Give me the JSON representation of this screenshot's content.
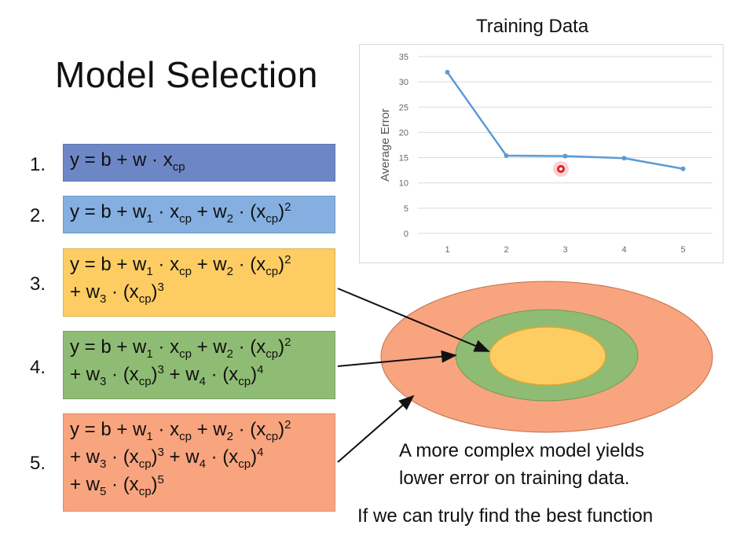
{
  "slide": {
    "title": "Model Selection",
    "models": [
      {
        "number": "1.",
        "color": "#6d86c6",
        "lines": [
          [
            [
              "t",
              "y = b + w · x"
            ],
            [
              "sub",
              "cp"
            ]
          ]
        ]
      },
      {
        "number": "2.",
        "color": "#84afe0",
        "lines": [
          [
            [
              "t",
              "y = b + w"
            ],
            [
              "sub",
              "1"
            ],
            [
              "t",
              " · x"
            ],
            [
              "sub",
              "cp"
            ],
            [
              "t",
              " + w"
            ],
            [
              "sub",
              "2"
            ],
            [
              "t",
              " · (x"
            ],
            [
              "sub",
              "cp"
            ],
            [
              "t",
              ")"
            ],
            [
              "sup",
              "2"
            ]
          ]
        ]
      },
      {
        "number": "3.",
        "color": "#fdcc63",
        "lines": [
          [
            [
              "t",
              "y = b + w"
            ],
            [
              "sub",
              "1"
            ],
            [
              "t",
              " · x"
            ],
            [
              "sub",
              "cp"
            ],
            [
              "t",
              " + w"
            ],
            [
              "sub",
              "2"
            ],
            [
              "t",
              " · (x"
            ],
            [
              "sub",
              "cp"
            ],
            [
              "t",
              ")"
            ],
            [
              "sup",
              "2"
            ]
          ],
          [
            [
              "t",
              "+ w"
            ],
            [
              "sub",
              "3"
            ],
            [
              "t",
              " · (x"
            ],
            [
              "sub",
              "cp"
            ],
            [
              "t",
              ")"
            ],
            [
              "sup",
              "3"
            ]
          ]
        ]
      },
      {
        "number": "4.",
        "color": "#8fbc74",
        "lines": [
          [
            [
              "t",
              "y = b + w"
            ],
            [
              "sub",
              "1"
            ],
            [
              "t",
              " · x"
            ],
            [
              "sub",
              "cp"
            ],
            [
              "t",
              " + w"
            ],
            [
              "sub",
              "2"
            ],
            [
              "t",
              " · (x"
            ],
            [
              "sub",
              "cp"
            ],
            [
              "t",
              ")"
            ],
            [
              "sup",
              "2"
            ]
          ],
          [
            [
              "t",
              "+ w"
            ],
            [
              "sub",
              "3"
            ],
            [
              "t",
              " · (x"
            ],
            [
              "sub",
              "cp"
            ],
            [
              "t",
              ")"
            ],
            [
              "sup",
              "3"
            ],
            [
              "t",
              " + w"
            ],
            [
              "sub",
              "4"
            ],
            [
              "t",
              " · (x"
            ],
            [
              "sub",
              "cp"
            ],
            [
              "t",
              ")"
            ],
            [
              "sup",
              "4"
            ]
          ]
        ]
      },
      {
        "number": "5.",
        "color": "#f8a47e",
        "lines": [
          [
            [
              "t",
              "y = b + w"
            ],
            [
              "sub",
              "1"
            ],
            [
              "t",
              " · x"
            ],
            [
              "sub",
              "cp"
            ],
            [
              "t",
              " + w"
            ],
            [
              "sub",
              "2"
            ],
            [
              "t",
              " · (x"
            ],
            [
              "sub",
              "cp"
            ],
            [
              "t",
              ")"
            ],
            [
              "sup",
              "2"
            ]
          ],
          [
            [
              "t",
              "+ w"
            ],
            [
              "sub",
              "3"
            ],
            [
              "t",
              " · (x"
            ],
            [
              "sub",
              "cp"
            ],
            [
              "t",
              ")"
            ],
            [
              "sup",
              "3"
            ],
            [
              "t",
              " + w"
            ],
            [
              "sub",
              "4"
            ],
            [
              "t",
              " · (x"
            ],
            [
              "sub",
              "cp"
            ],
            [
              "t",
              ")"
            ],
            [
              "sup",
              "4"
            ]
          ],
          [
            [
              "t",
              "+ w"
            ],
            [
              "sub",
              "5"
            ],
            [
              "t",
              " · (x"
            ],
            [
              "sub",
              "cp"
            ],
            [
              "t",
              ")"
            ],
            [
              "sup",
              "5"
            ]
          ]
        ]
      }
    ],
    "caption_line1": "A more complex model yields",
    "caption_line2": "lower error on training data.",
    "caption_line3": "If we can truly find the best function"
  },
  "chart_data": {
    "type": "line",
    "title": "Training Data",
    "xlabel": "",
    "ylabel": "Average Error",
    "categories": [
      "1",
      "2",
      "3",
      "4",
      "5"
    ],
    "values": [
      31.9,
      15.4,
      15.3,
      14.9,
      12.8
    ],
    "ylim": [
      0,
      35
    ],
    "yticks": [
      "0",
      "5",
      "10",
      "15",
      "20",
      "25",
      "30",
      "35"
    ],
    "grid": true,
    "line_color": "#5b9bd5"
  },
  "diagram": {
    "outer_color": "#f8a47e",
    "middle_color": "#8fbc74",
    "inner_color": "#fdcc63"
  },
  "pointer": {
    "color": "#e02020"
  }
}
